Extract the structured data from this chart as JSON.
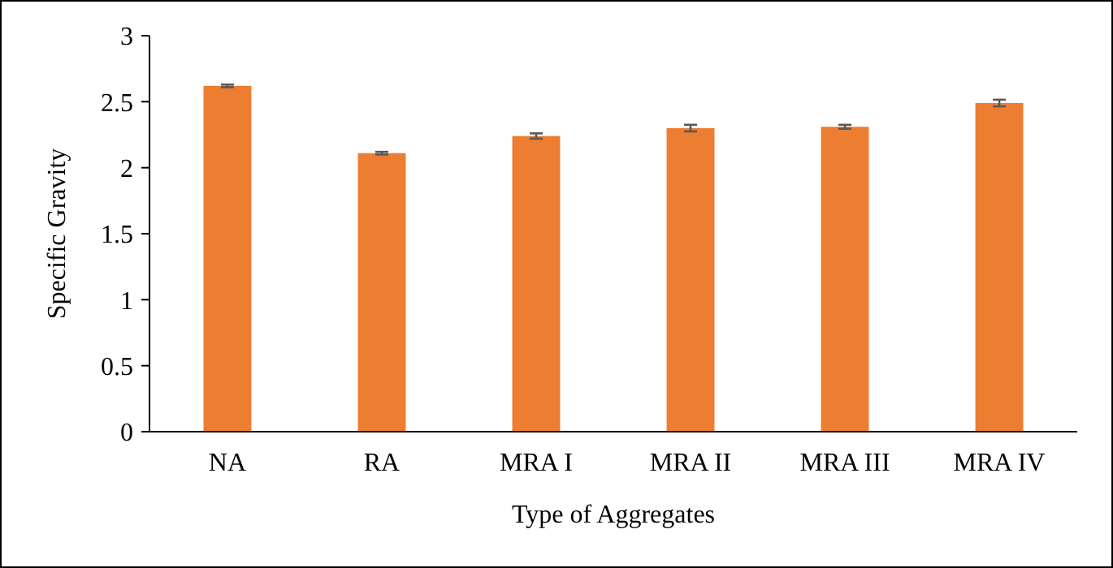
{
  "chart_data": {
    "type": "bar",
    "xlabel": "Type of Aggregates",
    "ylabel": "Specific Gravity",
    "categories": [
      "NA",
      "RA",
      "MRA I",
      "MRA II",
      "MRA III",
      "MRA IV"
    ],
    "values": [
      2.62,
      2.11,
      2.24,
      2.3,
      2.31,
      2.49
    ],
    "errors": [
      0.01,
      0.01,
      0.02,
      0.025,
      0.015,
      0.025
    ],
    "color": "#ed7d31",
    "ylim": [
      0,
      3
    ],
    "yticks": [
      0,
      0.5,
      1,
      1.5,
      2,
      2.5,
      3
    ],
    "grid": false
  }
}
